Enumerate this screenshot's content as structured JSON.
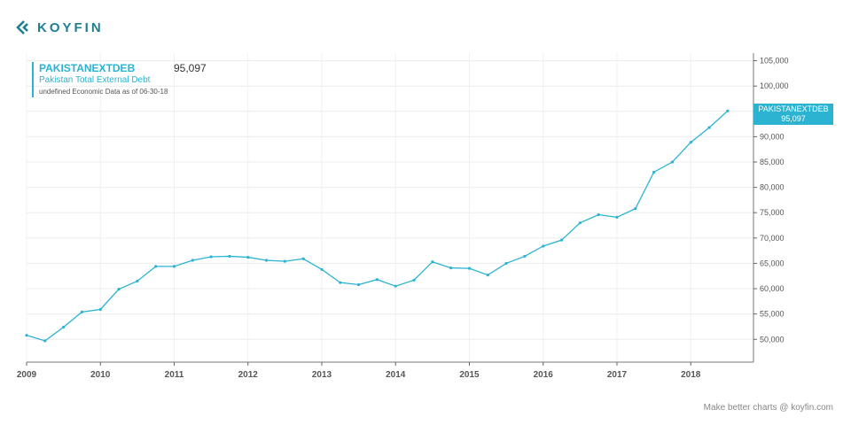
{
  "brand": {
    "logo_text": "KOYFIN"
  },
  "legend": {
    "symbol": "PAKISTANEXTDEB",
    "value": "95,097",
    "name": "Pakistan Total External Debt",
    "asof": "undefined Economic Data as of 06-30-18"
  },
  "badge": {
    "symbol": "PAKISTANEXTDEB",
    "value": "95,097"
  },
  "footer": "Make better charts @ koyfin.com",
  "colors": {
    "line": "#2bb3d1",
    "brand": "#1f7f92"
  },
  "chart_data": {
    "type": "line",
    "title": "",
    "xlabel": "",
    "ylabel": "",
    "y_axis_side": "right",
    "ylim": [
      45500,
      106500
    ],
    "xlim": [
      2009.0,
      2018.85
    ],
    "grid": true,
    "yticks": [
      50000,
      55000,
      60000,
      65000,
      70000,
      75000,
      80000,
      85000,
      90000,
      95000,
      100000,
      105000
    ],
    "ytick_labels": [
      "50,000",
      "55,000",
      "60,000",
      "65,000",
      "70,000",
      "75,000",
      "80,000",
      "85,000",
      "90,000",
      "95,000",
      "100,000",
      "105,000"
    ],
    "xticks": [
      2009,
      2010,
      2011,
      2012,
      2013,
      2014,
      2015,
      2016,
      2017,
      2018
    ],
    "xtick_labels": [
      "2009",
      "2010",
      "2011",
      "2012",
      "2013",
      "2014",
      "2015",
      "2016",
      "2017",
      "2018"
    ],
    "series": [
      {
        "name": "PAKISTANEXTDEB",
        "x": [
          2009.0,
          2009.25,
          2009.5,
          2009.75,
          2010.0,
          2010.25,
          2010.5,
          2010.75,
          2011.0,
          2011.25,
          2011.5,
          2011.75,
          2012.0,
          2012.25,
          2012.5,
          2012.75,
          2013.0,
          2013.25,
          2013.5,
          2013.75,
          2014.0,
          2014.25,
          2014.5,
          2014.75,
          2015.0,
          2015.25,
          2015.5,
          2015.75,
          2016.0,
          2016.25,
          2016.5,
          2016.75,
          2017.0,
          2017.25,
          2017.5,
          2017.75,
          2018.0,
          2018.25,
          2018.5
        ],
        "values": [
          50800,
          49700,
          52400,
          55400,
          55900,
          59900,
          61500,
          64400,
          64400,
          65600,
          66300,
          66400,
          66200,
          65600,
          65400,
          65900,
          63800,
          61200,
          60800,
          61800,
          60500,
          61700,
          65300,
          64100,
          64000,
          62700,
          65000,
          66400,
          68400,
          69600,
          73000,
          74600,
          74100,
          75800,
          83000,
          85000,
          88900,
          91800,
          95097
        ]
      }
    ]
  }
}
